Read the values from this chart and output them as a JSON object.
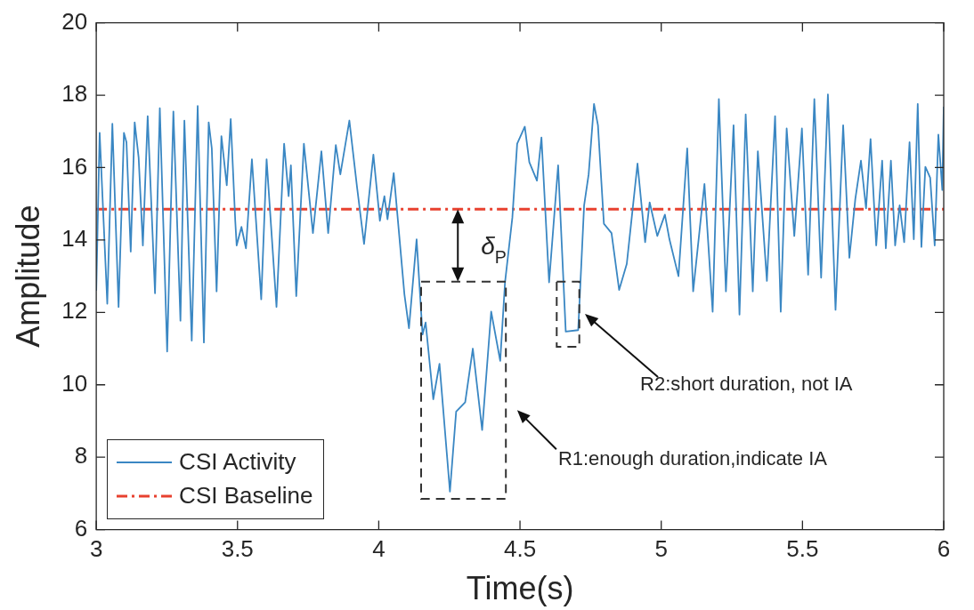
{
  "chart_data": {
    "type": "line",
    "xlabel": "Time(s)",
    "ylabel": "Amplitude",
    "xlim": [
      3,
      6
    ],
    "ylim": [
      6,
      20
    ],
    "xticks": [
      3,
      3.5,
      4,
      4.5,
      5,
      5.5,
      6
    ],
    "yticks": [
      6,
      8,
      10,
      12,
      14,
      16,
      18,
      20
    ],
    "grid": false,
    "legend": "bottom left",
    "marker": "none",
    "annotations": [
      "δ$_{P}$",
      "R1:enough duration,indicate IA",
      "R2:short duration, not IA"
    ],
    "series": [
      {
        "name": "CSI Activity",
        "color": "#3a87c3",
        "line_style": "solid",
        "x": [
          3.0,
          3.012,
          3.039,
          3.057,
          3.079,
          3.098,
          3.107,
          3.122,
          3.136,
          3.15,
          3.165,
          3.182,
          3.208,
          3.225,
          3.251,
          3.273,
          3.298,
          3.312,
          3.338,
          3.359,
          3.381,
          3.398,
          3.409,
          3.426,
          3.443,
          3.462,
          3.476,
          3.492,
          3.497,
          3.514,
          3.53,
          3.551,
          3.584,
          3.603,
          3.638,
          3.665,
          3.681,
          3.689,
          3.708,
          3.735,
          3.767,
          3.797,
          3.821,
          3.848,
          3.864,
          3.896,
          3.923,
          3.948,
          3.981,
          4.004,
          4.02,
          4.031,
          4.053,
          4.091,
          4.107,
          4.134,
          4.155,
          4.166,
          4.193,
          4.215,
          4.252,
          4.274,
          4.306,
          4.333,
          4.366,
          4.398,
          4.43,
          4.447,
          4.473,
          4.49,
          4.517,
          4.533,
          4.56,
          4.576,
          4.603,
          4.635,
          4.662,
          4.706,
          4.727,
          4.743,
          4.762,
          4.776,
          4.797,
          4.824,
          4.851,
          4.878,
          4.916,
          4.943,
          4.959,
          4.986,
          5.013,
          5.029,
          5.061,
          5.092,
          5.113,
          5.153,
          5.182,
          5.204,
          5.229,
          5.256,
          5.277,
          5.299,
          5.324,
          5.342,
          5.374,
          5.403,
          5.423,
          5.444,
          5.471,
          5.498,
          5.52,
          5.542,
          5.566,
          5.59,
          5.617,
          5.644,
          5.666,
          5.687,
          5.707,
          5.725,
          5.741,
          5.761,
          5.782,
          5.795,
          5.813,
          5.828,
          5.844,
          5.86,
          5.879,
          5.894,
          5.908,
          5.921,
          5.935,
          5.952,
          5.968,
          5.981,
          5.995,
          6.0
        ],
        "values": [
          12.6,
          16.96,
          12.24,
          17.21,
          12.15,
          16.96,
          16.7,
          13.68,
          17.25,
          16.28,
          13.85,
          17.42,
          12.53,
          17.64,
          10.92,
          17.55,
          11.77,
          17.3,
          11.22,
          17.7,
          11.17,
          17.25,
          16.53,
          12.58,
          16.87,
          15.51,
          17.34,
          14.53,
          13.85,
          14.36,
          13.77,
          16.23,
          12.36,
          16.23,
          12.15,
          16.66,
          15.21,
          16.06,
          12.45,
          16.66,
          14.19,
          16.45,
          14.19,
          16.62,
          15.81,
          17.3,
          15.47,
          13.89,
          16.36,
          14.53,
          15.21,
          14.57,
          15.85,
          12.49,
          11.56,
          14.02,
          11.39,
          11.72,
          9.6,
          10.58,
          7.05,
          9.26,
          9.52,
          11.0,
          8.75,
          12.02,
          10.66,
          12.83,
          14.62,
          16.66,
          17.13,
          16.15,
          15.64,
          16.83,
          12.83,
          16.06,
          11.47,
          11.51,
          14.96,
          15.81,
          17.76,
          17.17,
          14.45,
          14.19,
          12.62,
          13.34,
          16.11,
          13.94,
          15.04,
          14.11,
          14.7,
          14.02,
          13.0,
          16.53,
          12.58,
          15.55,
          12.02,
          17.89,
          12.58,
          17.17,
          11.94,
          17.47,
          12.58,
          16.45,
          12.87,
          17.42,
          12.02,
          17.08,
          14.11,
          17.08,
          13.04,
          17.89,
          12.96,
          18.02,
          12.07,
          17.17,
          13.51,
          15.13,
          16.19,
          14.87,
          16.79,
          13.85,
          16.19,
          13.77,
          16.19,
          13.85,
          14.96,
          13.94,
          16.7,
          14.02,
          17.76,
          13.81,
          16.02,
          15.72,
          13.85,
          16.91,
          15.38,
          17.68
        ]
      },
      {
        "name": "CSI Baseline",
        "color": "#e8412f",
        "line_style": "dashed",
        "x": [
          3,
          6
        ],
        "values": [
          14.85,
          14.85
        ]
      }
    ]
  }
}
